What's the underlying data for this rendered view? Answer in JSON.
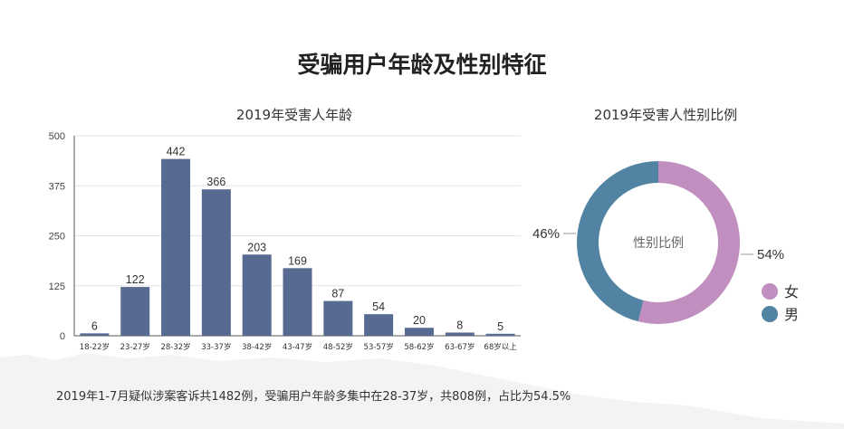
{
  "title": "受骗用户年龄及性别特征",
  "footnote": "2019年1-7月疑似涉案客诉共1482例，受骗用户年龄多集中在28-37岁，共808例，占比为54.5%",
  "colors": {
    "bar": "#576a91",
    "female": "#c08fbf",
    "male": "#5283a3",
    "grid": "#e3e3e3",
    "axis": "#555555"
  },
  "chart_data": [
    {
      "type": "bar",
      "title": "2019年受害人年龄",
      "xlabel": "",
      "ylabel": "",
      "categories": [
        "18-22岁",
        "23-27岁",
        "28-32岁",
        "33-37岁",
        "38-42岁",
        "43-47岁",
        "48-52岁",
        "53-57岁",
        "58-62岁",
        "63-67岁",
        "68岁以上"
      ],
      "values": [
        6,
        122,
        442,
        366,
        203,
        169,
        87,
        54,
        20,
        8,
        5
      ],
      "ylim": [
        0,
        500
      ],
      "yticks": [
        0,
        125,
        250,
        375,
        500
      ],
      "grid": true,
      "legend": "none"
    },
    {
      "type": "pie",
      "style": "donut",
      "title": "2019年受害人性别比例",
      "center_label": "性别比例",
      "slices": [
        {
          "name": "女",
          "value": 54,
          "label": "54%"
        },
        {
          "name": "男",
          "value": 46,
          "label": "46%"
        }
      ],
      "legend": "bottom-right"
    }
  ]
}
